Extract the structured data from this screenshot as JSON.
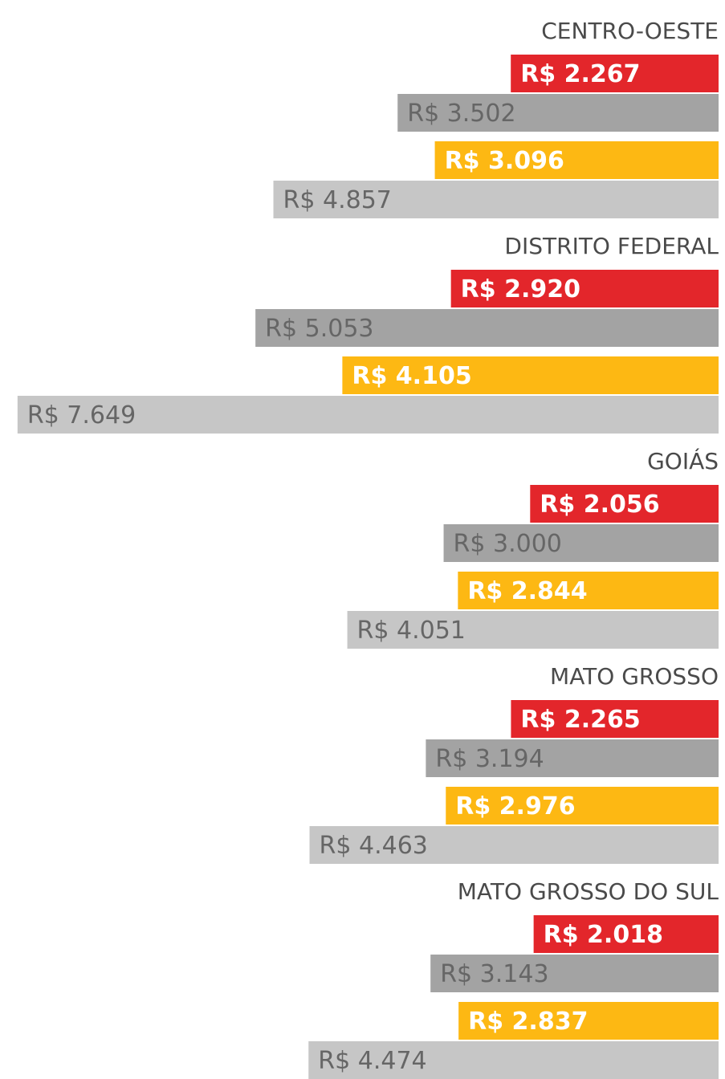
{
  "chart_data": {
    "type": "barh-grouped",
    "categories": [
      "CENTRO-OESTE",
      "DISTRITO FEDERAL",
      "GOIÁS",
      "MATO GROSSO",
      "MATO GROSSO DO SUL"
    ],
    "xlim": [
      0,
      7700
    ],
    "series": [
      {
        "color": "#e3262b",
        "values": [
          2267,
          2920,
          2056,
          2265,
          2018
        ],
        "value_labels": [
          "R$ 2.267",
          "R$ 2.920",
          "R$ 2.056",
          "R$ 2.265",
          "R$ 2.018"
        ]
      },
      {
        "color": "#a3a3a3",
        "values": [
          3502,
          5053,
          3000,
          3194,
          3143
        ],
        "value_labels": [
          "R$ 3.502",
          "R$ 5.053",
          "R$ 3.000",
          "R$ 3.194",
          "R$ 3.143"
        ]
      },
      {
        "color": "#fdb813",
        "values": [
          3096,
          4105,
          2844,
          2976,
          2837
        ],
        "value_labels": [
          "R$ 3.096",
          "R$ 4.105",
          "R$ 2.844",
          "R$ 2.976",
          "R$ 2.837"
        ]
      },
      {
        "color": "#c6c6c6",
        "values": [
          4857,
          7649,
          4051,
          4463,
          4474
        ],
        "value_labels": [
          "R$ 4.857",
          "R$ 7.649",
          "R$ 4.051",
          "R$ 4.463",
          "R$ 4.474"
        ]
      }
    ]
  }
}
